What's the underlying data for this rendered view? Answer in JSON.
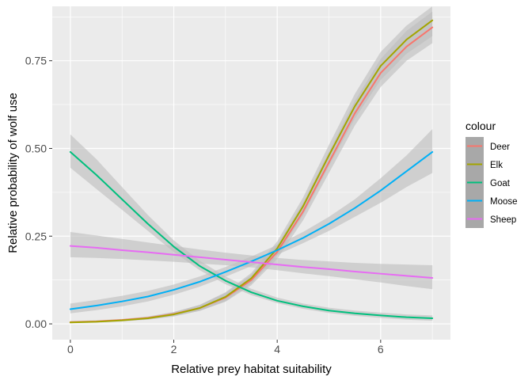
{
  "chart_data": {
    "type": "line",
    "title": "",
    "xlabel": "Relative prey habitat suitability",
    "ylabel": "Relative probability of wolf use",
    "xlim": [
      -0.35,
      7.35
    ],
    "ylim": [
      -0.045,
      0.905
    ],
    "x_ticks": [
      0,
      2,
      4,
      6
    ],
    "x_tick_labels": [
      "0",
      "2",
      "4",
      "6"
    ],
    "y_ticks": [
      0,
      0.25,
      0.5,
      0.75
    ],
    "y_tick_labels": [
      "0.00",
      "0.25",
      "0.50",
      "0.75"
    ],
    "grid": true,
    "legend": {
      "title": "colour",
      "position": "right"
    },
    "confidence_band_color": "#bdbdbd",
    "panel_background": "#ebebeb",
    "series": [
      {
        "name": "Deer",
        "color": "#F8766D",
        "x": [
          0,
          0.5,
          1,
          1.5,
          2,
          2.5,
          3,
          3.5,
          4,
          4.5,
          5,
          5.5,
          6,
          6.5,
          7
        ],
        "y": [
          0.005,
          0.007,
          0.011,
          0.017,
          0.028,
          0.045,
          0.075,
          0.125,
          0.205,
          0.32,
          0.46,
          0.6,
          0.715,
          0.79,
          0.845
        ],
        "lower": [
          0.003,
          0.005,
          0.008,
          0.013,
          0.022,
          0.037,
          0.063,
          0.11,
          0.185,
          0.295,
          0.43,
          0.565,
          0.675,
          0.75,
          0.8
        ],
        "upper": [
          0.008,
          0.01,
          0.014,
          0.021,
          0.034,
          0.054,
          0.088,
          0.14,
          0.225,
          0.345,
          0.49,
          0.635,
          0.755,
          0.835,
          0.89
        ]
      },
      {
        "name": "Elk",
        "color": "#A3A500",
        "x": [
          0,
          0.5,
          1,
          1.5,
          2,
          2.5,
          3,
          3.5,
          4,
          4.5,
          5,
          5.5,
          6,
          6.5,
          7
        ],
        "y": [
          0.004,
          0.006,
          0.01,
          0.016,
          0.027,
          0.045,
          0.077,
          0.13,
          0.215,
          0.335,
          0.48,
          0.62,
          0.735,
          0.81,
          0.865
        ],
        "lower": [
          0.002,
          0.004,
          0.007,
          0.012,
          0.021,
          0.037,
          0.065,
          0.115,
          0.195,
          0.31,
          0.45,
          0.585,
          0.695,
          0.77,
          0.82
        ],
        "upper": [
          0.007,
          0.009,
          0.013,
          0.02,
          0.033,
          0.054,
          0.09,
          0.145,
          0.235,
          0.36,
          0.51,
          0.655,
          0.775,
          0.85,
          0.905
        ]
      },
      {
        "name": "Goat",
        "color": "#00BF7D",
        "x": [
          0,
          0.5,
          1,
          1.5,
          2,
          2.5,
          3,
          3.5,
          4,
          4.5,
          5,
          5.5,
          6,
          6.5,
          7
        ],
        "y": [
          0.49,
          0.425,
          0.355,
          0.285,
          0.22,
          0.165,
          0.123,
          0.09,
          0.066,
          0.05,
          0.038,
          0.03,
          0.024,
          0.019,
          0.016
        ],
        "lower": [
          0.445,
          0.385,
          0.325,
          0.265,
          0.205,
          0.153,
          0.113,
          0.082,
          0.059,
          0.043,
          0.031,
          0.023,
          0.017,
          0.012,
          0.009
        ],
        "upper": [
          0.54,
          0.47,
          0.39,
          0.31,
          0.238,
          0.18,
          0.135,
          0.1,
          0.075,
          0.058,
          0.046,
          0.038,
          0.032,
          0.027,
          0.024
        ]
      },
      {
        "name": "Moose",
        "color": "#00B0F6",
        "x": [
          0,
          0.5,
          1,
          1.5,
          2,
          2.5,
          3,
          3.5,
          4,
          4.5,
          5,
          5.5,
          6,
          6.5,
          7
        ],
        "y": [
          0.042,
          0.052,
          0.064,
          0.078,
          0.097,
          0.12,
          0.148,
          0.178,
          0.21,
          0.245,
          0.285,
          0.33,
          0.38,
          0.435,
          0.49
        ],
        "lower": [
          0.03,
          0.039,
          0.05,
          0.064,
          0.083,
          0.106,
          0.134,
          0.165,
          0.197,
          0.23,
          0.265,
          0.305,
          0.345,
          0.39,
          0.43
        ],
        "upper": [
          0.058,
          0.068,
          0.08,
          0.094,
          0.112,
          0.135,
          0.162,
          0.192,
          0.225,
          0.262,
          0.305,
          0.355,
          0.415,
          0.48,
          0.555
        ]
      },
      {
        "name": "Sheep",
        "color": "#E76BF3",
        "x": [
          0,
          0.5,
          1,
          1.5,
          2,
          2.5,
          3,
          3.5,
          4,
          4.5,
          5,
          5.5,
          6,
          6.5,
          7
        ],
        "y": [
          0.222,
          0.217,
          0.21,
          0.204,
          0.197,
          0.19,
          0.183,
          0.176,
          0.169,
          0.162,
          0.156,
          0.149,
          0.143,
          0.137,
          0.131
        ],
        "lower": [
          0.19,
          0.188,
          0.185,
          0.181,
          0.177,
          0.172,
          0.167,
          0.161,
          0.153,
          0.144,
          0.136,
          0.127,
          0.118,
          0.108,
          0.099
        ],
        "upper": [
          0.262,
          0.252,
          0.242,
          0.232,
          0.222,
          0.212,
          0.203,
          0.195,
          0.188,
          0.182,
          0.178,
          0.174,
          0.171,
          0.169,
          0.167
        ]
      }
    ]
  }
}
